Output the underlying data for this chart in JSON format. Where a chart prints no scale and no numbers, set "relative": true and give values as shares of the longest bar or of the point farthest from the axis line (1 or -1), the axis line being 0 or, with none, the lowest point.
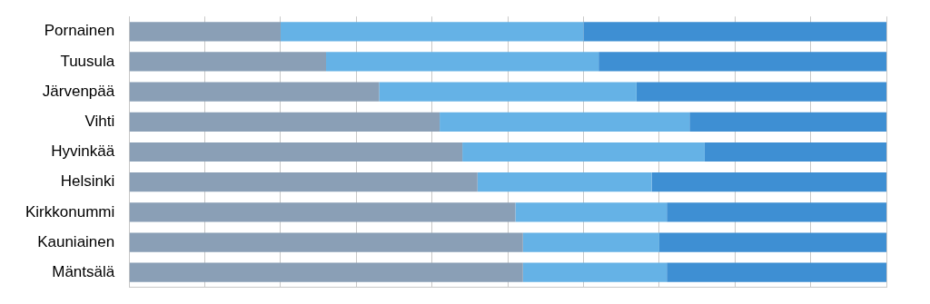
{
  "chart_data": {
    "type": "bar",
    "orientation": "horizontal",
    "stacked": true,
    "relative": true,
    "grid": "x",
    "legend": false,
    "categories": [
      "Pornainen",
      "Tuusula",
      "Järvenpää",
      "Vihti",
      "Hyvinkää",
      "Helsinki",
      "Kirkkonummi",
      "Kauniainen",
      "Mäntsälä"
    ],
    "series": [
      {
        "color": "#8a9fb6",
        "values": [
          0.2,
          0.26,
          0.33,
          0.41,
          0.44,
          0.46,
          0.51,
          0.52,
          0.52
        ]
      },
      {
        "color": "#65b2e6",
        "values": [
          0.4,
          0.36,
          0.34,
          0.33,
          0.32,
          0.23,
          0.2,
          0.18,
          0.19
        ]
      },
      {
        "color": "#3e8fd3",
        "values": [
          0.4,
          0.38,
          0.33,
          0.26,
          0.24,
          0.31,
          0.29,
          0.3,
          0.29
        ]
      }
    ]
  }
}
